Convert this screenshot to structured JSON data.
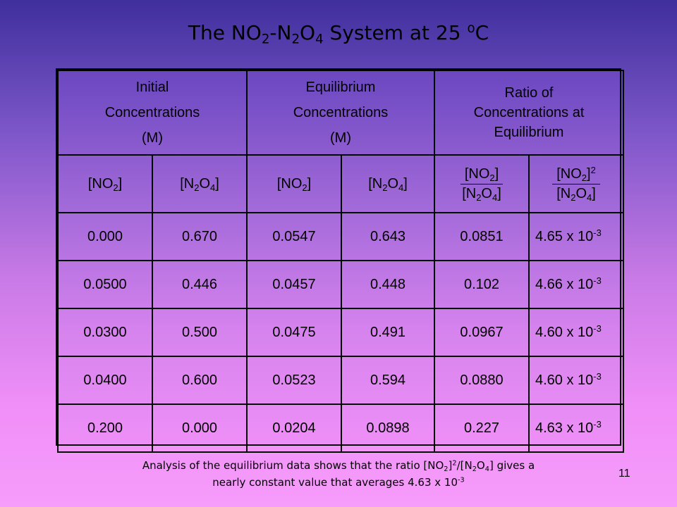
{
  "slide": {
    "title_parts": [
      "The NO",
      "2",
      "-N",
      "2",
      "O",
      "4",
      " System at 25 ",
      "o",
      "C"
    ],
    "page_number": "11"
  },
  "table": {
    "group_headers": [
      [
        "Initial",
        "Concentrations",
        "(M)"
      ],
      [
        "Equilibrium",
        "Concentrations",
        "(M)"
      ],
      [
        "Ratio of",
        "Concentrations at",
        "Equilibrium"
      ]
    ],
    "col_headers": {
      "no2": [
        "[NO",
        "2",
        "]"
      ],
      "n2o4": [
        "[N",
        "2",
        "O",
        "4",
        "]"
      ],
      "ratio1_num": [
        "[NO",
        "2",
        "]"
      ],
      "ratio1_den": [
        "[N",
        "2",
        "O",
        "4",
        "]"
      ],
      "ratio2_num": [
        "[NO",
        "2",
        "]",
        "2"
      ],
      "ratio2_den": [
        "[N",
        "2",
        "O",
        "4",
        "]"
      ]
    },
    "rows": [
      {
        "init_no2": "0.000",
        "init_n2o4": "0.670",
        "eq_no2": "0.0547",
        "eq_n2o4": "0.643",
        "ratio1": "0.0851",
        "ratio2_base": "4.65 x 10",
        "ratio2_exp": "-3"
      },
      {
        "init_no2": "0.0500",
        "init_n2o4": "0.446",
        "eq_no2": "0.0457",
        "eq_n2o4": "0.448",
        "ratio1": "0.102",
        "ratio2_base": "4.66 x 10",
        "ratio2_exp": "-3"
      },
      {
        "init_no2": "0.0300",
        "init_n2o4": "0.500",
        "eq_no2": "0.0475",
        "eq_n2o4": "0.491",
        "ratio1": "0.0967",
        "ratio2_base": "4.60 x 10",
        "ratio2_exp": "-3"
      },
      {
        "init_no2": "0.0400",
        "init_n2o4": "0.600",
        "eq_no2": "0.0523",
        "eq_n2o4": "0.594",
        "ratio1": "0.0880",
        "ratio2_base": "4.60 x 10",
        "ratio2_exp": "-3"
      },
      {
        "init_no2": "0.200",
        "init_n2o4": "0.000",
        "eq_no2": "0.0204",
        "eq_n2o4": "0.0898",
        "ratio1": "0.227",
        "ratio2_base": "4.63 x 10",
        "ratio2_exp": "-3"
      }
    ]
  },
  "caption": {
    "line1_parts": [
      "Analysis of the equilibrium data shows that the ratio [NO",
      "2",
      "]",
      "2",
      "/[N",
      "2",
      "O",
      "4",
      "] gives a"
    ],
    "line2_parts": [
      "nearly constant value that averages 4.63 x 10",
      "-3"
    ]
  }
}
